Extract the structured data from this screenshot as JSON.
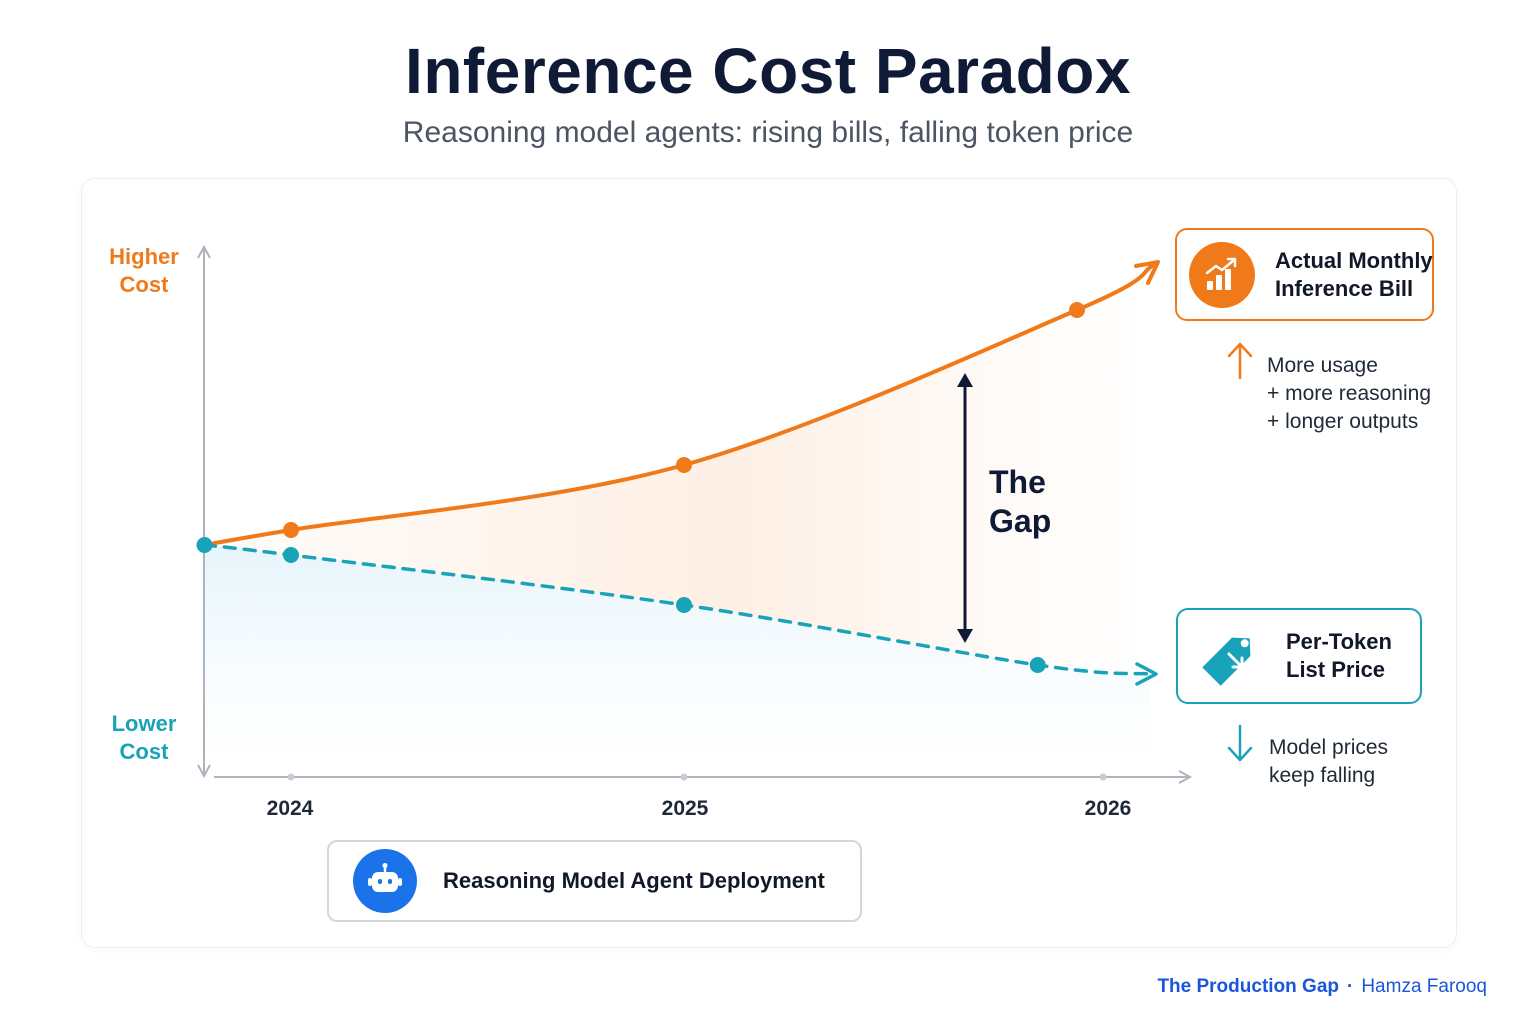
{
  "title": "Inference Cost Paradox",
  "subtitle": "Reasoning model agents: rising bills, falling token price",
  "axis": {
    "y_high_label": "Higher Cost",
    "y_low_label": "Lower Cost"
  },
  "gap_label": "The Gap",
  "legend": {
    "bill": {
      "label": "Actual Monthly Inference Bill",
      "icon": "rising-bar-chart-icon",
      "note": [
        "More usage",
        "+ more reasoning",
        "+ longer outputs"
      ],
      "note_icon": "up-arrow-icon"
    },
    "price": {
      "label": "Per-Token List Price",
      "icon": "price-tag-icon",
      "note": [
        "Model prices",
        "keep falling"
      ],
      "note_icon": "down-arrow-icon"
    }
  },
  "deployment": {
    "label": "Reasoning Model Agent Deployment",
    "icon": "robot-icon"
  },
  "footer": {
    "publication": "The Production Gap",
    "separator": "·",
    "author": "Hamza Farooq"
  },
  "colors": {
    "bill": "#f07a1a",
    "price": "#19a3b8",
    "title": "#0f1a36",
    "footer": "#1a56db",
    "axis": "#aeb4bd"
  },
  "chart_data": {
    "type": "line",
    "x_ticks": [
      "2024",
      "2025",
      "2026"
    ],
    "y_axis": "relative cost (no numeric scale shown)",
    "ylim": [
      0,
      100
    ],
    "grid": false,
    "legend_placement": "right",
    "series": [
      {
        "name": "Actual Monthly Inference Bill",
        "style": "solid",
        "color": "#f07a1a",
        "points": [
          {
            "x": 2023.78,
            "y": 45
          },
          {
            "x": 2024.0,
            "y": 48
          },
          {
            "x": 2025.0,
            "y": 61
          },
          {
            "x": 2026.0,
            "y": 92
          }
        ]
      },
      {
        "name": "Per-Token List Price",
        "style": "dashed",
        "color": "#19a3b8",
        "points": [
          {
            "x": 2023.78,
            "y": 45
          },
          {
            "x": 2024.0,
            "y": 43
          },
          {
            "x": 2025.0,
            "y": 33
          },
          {
            "x": 2025.9,
            "y": 21
          }
        ]
      }
    ]
  }
}
